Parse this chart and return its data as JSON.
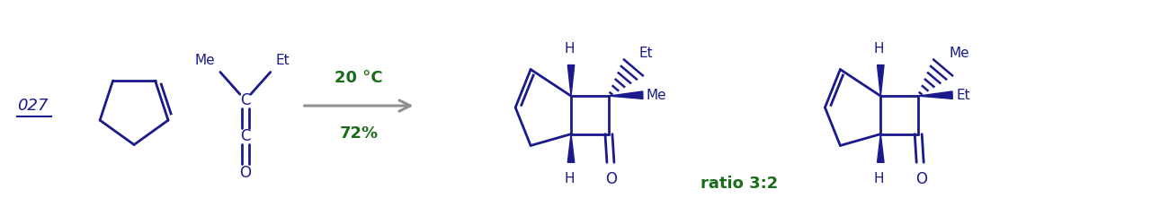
{
  "bg_color": "#ffffff",
  "blue": "#1a1a8c",
  "green": "#1a6b1a",
  "gray": "#909090",
  "label": "027",
  "temp": "20 °C",
  "yield_pct": "72%",
  "ratio": "ratio 3:2"
}
